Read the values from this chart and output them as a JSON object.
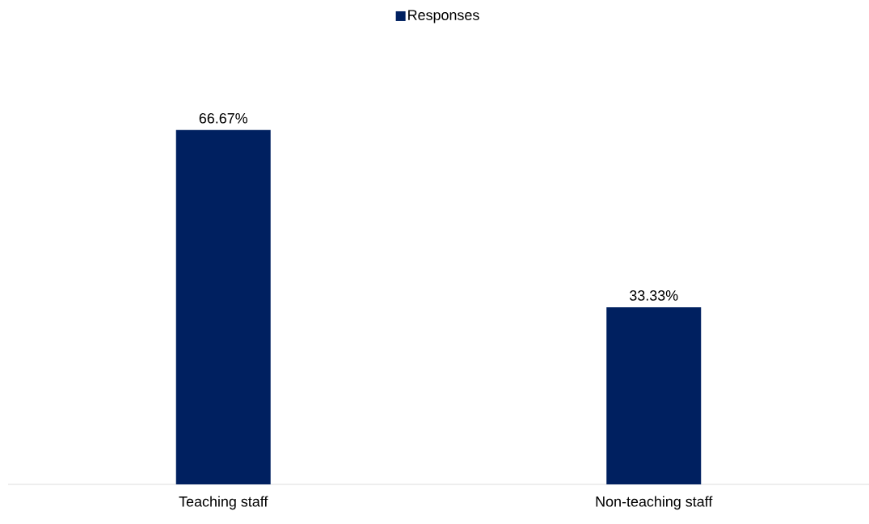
{
  "chart_data": {
    "type": "bar",
    "categories": [
      "Teaching staff",
      "Non-teaching staff"
    ],
    "series": [
      {
        "name": "Responses",
        "color": "#002060",
        "values": [
          66.67,
          33.33
        ],
        "value_labels": [
          "66.67%",
          "33.33%"
        ]
      }
    ],
    "legend": "top"
  }
}
